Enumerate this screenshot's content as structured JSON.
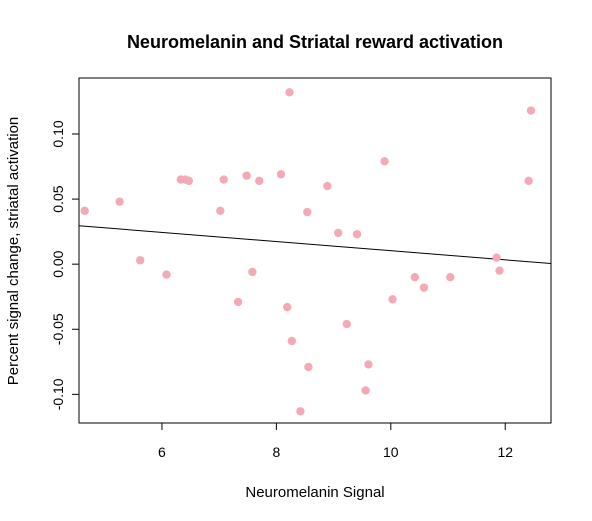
{
  "chart_data": {
    "type": "scatter",
    "title": "Neuromelanin and Striatal reward activation",
    "xlabel": "Neuromelanin Signal",
    "ylabel": "Percent signal change, striatal activation",
    "xlim": [
      4.55,
      12.8
    ],
    "ylim": [
      -0.122,
      0.143
    ],
    "xticks": [
      6,
      8,
      10,
      12
    ],
    "xtick_labels": [
      "6",
      "8",
      "10",
      "12"
    ],
    "yticks": [
      -0.1,
      -0.05,
      0.0,
      0.05,
      0.1
    ],
    "ytick_labels": [
      "-0.10",
      "-0.05",
      "0.00",
      "0.05",
      "0.10"
    ],
    "grid": false,
    "legend": "none",
    "point_color": "#f4aab6",
    "line_color": "#000000",
    "points": [
      {
        "x": 4.65,
        "y": 0.041
      },
      {
        "x": 5.26,
        "y": 0.048
      },
      {
        "x": 5.62,
        "y": 0.003
      },
      {
        "x": 6.08,
        "y": -0.008
      },
      {
        "x": 6.33,
        "y": 0.065
      },
      {
        "x": 6.41,
        "y": 0.065
      },
      {
        "x": 6.47,
        "y": 0.064
      },
      {
        "x": 7.02,
        "y": 0.041
      },
      {
        "x": 7.08,
        "y": 0.065
      },
      {
        "x": 7.33,
        "y": -0.029
      },
      {
        "x": 7.48,
        "y": 0.068
      },
      {
        "x": 7.58,
        "y": -0.006
      },
      {
        "x": 7.7,
        "y": 0.064
      },
      {
        "x": 8.08,
        "y": 0.069
      },
      {
        "x": 8.19,
        "y": -0.033
      },
      {
        "x": 8.23,
        "y": 0.132
      },
      {
        "x": 8.27,
        "y": -0.059
      },
      {
        "x": 8.42,
        "y": -0.113
      },
      {
        "x": 8.54,
        "y": 0.04
      },
      {
        "x": 8.56,
        "y": -0.079
      },
      {
        "x": 8.89,
        "y": 0.06
      },
      {
        "x": 9.08,
        "y": 0.024
      },
      {
        "x": 9.23,
        "y": -0.046
      },
      {
        "x": 9.41,
        "y": 0.023
      },
      {
        "x": 9.56,
        "y": -0.097
      },
      {
        "x": 9.61,
        "y": -0.077
      },
      {
        "x": 9.89,
        "y": 0.079
      },
      {
        "x": 10.03,
        "y": -0.027
      },
      {
        "x": 10.42,
        "y": -0.01
      },
      {
        "x": 10.58,
        "y": -0.018
      },
      {
        "x": 11.04,
        "y": -0.01
      },
      {
        "x": 11.85,
        "y": 0.005
      },
      {
        "x": 11.9,
        "y": -0.005
      },
      {
        "x": 12.41,
        "y": 0.064
      },
      {
        "x": 12.45,
        "y": 0.118
      }
    ],
    "regression_line": {
      "x": [
        4.55,
        12.8
      ],
      "y": [
        0.0295,
        0.0005
      ]
    }
  }
}
